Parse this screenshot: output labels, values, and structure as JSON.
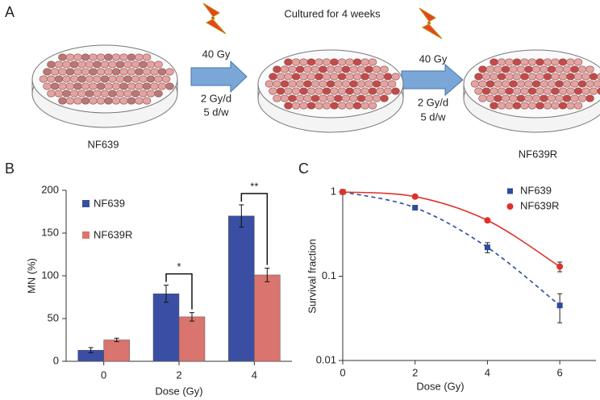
{
  "panel_a": {
    "label": "A",
    "title": "Cultured for 4 weeks",
    "steps": [
      {
        "dose": "40 Gy",
        "schedule": "2 Gy/d",
        "frequency": "5 d/w"
      },
      {
        "dose": "40 Gy",
        "schedule": "2 Gy/d",
        "frequency": "5 d/w"
      }
    ],
    "dishes": [
      "NF639",
      "NF639R"
    ]
  },
  "chart_data": [
    {
      "type": "bar",
      "panel_label": "B",
      "xlabel": "Dose (Gy)",
      "ylabel": "MN (%)",
      "categories": [
        "0",
        "2",
        "4"
      ],
      "series": [
        {
          "name": "NF639",
          "color": "#3a4fa3",
          "values": [
            13,
            79,
            170
          ],
          "errors": [
            3,
            10,
            13
          ]
        },
        {
          "name": "NF639R",
          "color": "#d9746e",
          "values": [
            25,
            52,
            101
          ],
          "errors": [
            2,
            5,
            8
          ]
        }
      ],
      "ylim": [
        0,
        200
      ],
      "yticks": [
        0,
        50,
        100,
        150,
        200
      ],
      "legend": "upper left",
      "annotations": [
        {
          "text": "*",
          "category": "2"
        },
        {
          "text": "**",
          "category": "4"
        }
      ]
    },
    {
      "type": "line",
      "panel_label": "C",
      "xlabel": "Dose (Gy)",
      "ylabel": "Survival fraction",
      "x": [
        0,
        2,
        4,
        6
      ],
      "series": [
        {
          "name": "NF639",
          "color": "#2c4b9b",
          "marker": "square",
          "linestyle": "dashed",
          "values": [
            1,
            0.65,
            0.22,
            0.045
          ],
          "errors": [
            null,
            null,
            0.03,
            0.017
          ]
        },
        {
          "name": "NF639R",
          "color": "#e0302a",
          "marker": "circle",
          "linestyle": "solid",
          "values": [
            1,
            0.88,
            0.46,
            0.13
          ],
          "errors": [
            null,
            null,
            null,
            0.017
          ]
        }
      ],
      "xlim": [
        0,
        7
      ],
      "xticks": [
        0,
        2,
        4,
        6
      ],
      "ylim": [
        0.01,
        1
      ],
      "yticks": [
        0.01,
        0.1,
        1
      ],
      "log_y": true,
      "legend": "upper right"
    }
  ]
}
